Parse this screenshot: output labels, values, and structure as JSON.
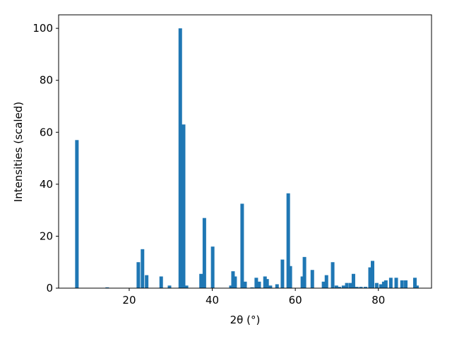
{
  "chart_data": {
    "type": "bar",
    "xlabel": "2θ (°)",
    "ylabel": "Intensities (scaled)",
    "color": "#1f77b4",
    "x": [
      7.4,
      14.7,
      22.2,
      23.2,
      24.2,
      27.7,
      29.7,
      32.3,
      33.1,
      33.8,
      37.3,
      38.1,
      40.1,
      44.5,
      45.0,
      45.5,
      47.2,
      47.9,
      49.6,
      50.6,
      51.3,
      52.7,
      53.2,
      54.0,
      55.6,
      56.9,
      58.3,
      58.8,
      61.7,
      62.2,
      64.1,
      66.8,
      67.5,
      69.0,
      69.9,
      70.6,
      71.6,
      72.4,
      73.3,
      74.0,
      74.8,
      75.8,
      76.9,
      78.0,
      78.6,
      79.6,
      80.6,
      81.3,
      81.8,
      83.0,
      84.3,
      85.7,
      86.6,
      88.8,
      89.3
    ],
    "values": [
      57,
      0.3,
      10,
      15,
      5,
      4.5,
      1,
      100,
      63,
      1,
      5.5,
      27,
      16,
      1,
      6.5,
      4.5,
      32.5,
      2.5,
      0.3,
      4,
      2.5,
      4.5,
      3.5,
      1,
      1.5,
      11,
      36.5,
      8.5,
      4.5,
      12,
      7,
      2.5,
      5,
      10,
      1,
      0.5,
      1,
      2,
      2,
      5.5,
      0.5,
      0.5,
      0.5,
      8,
      10.5,
      2,
      1.5,
      2.5,
      3,
      4,
      4,
      3,
      3,
      4,
      1
    ],
    "xlim": [
      3,
      92.8
    ],
    "ylim": [
      0,
      105.2
    ],
    "xticks": [
      20,
      40,
      60,
      80
    ],
    "yticks": [
      0,
      20,
      40,
      60,
      80,
      100
    ]
  }
}
